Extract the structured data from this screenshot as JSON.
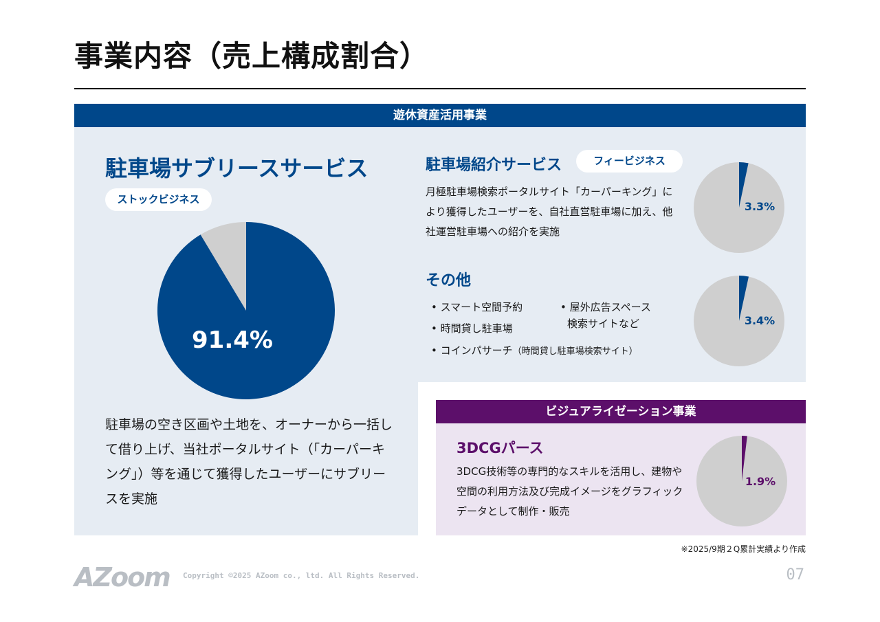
{
  "page": {
    "title": "事業内容（売上構成割合）",
    "footnote": "※2025/9期２Q累計実績より作成",
    "logo_text": "AZoom",
    "copyright": "Copyright ©2025 AZoom co., ltd. All Rights Reserved.",
    "page_number": "07"
  },
  "colors": {
    "primary_blue": "#00478a",
    "panel_blue": "#e6ecf3",
    "purple": "#5c0f6a",
    "panel_purple": "#ece4f1",
    "pie_grey": "#cfcfcf"
  },
  "idle_assets": {
    "header": "遊休資産活用事業",
    "sublease": {
      "title": "駐車場サブリースサービス",
      "badge": "ストックビジネス",
      "description": "駐車場の空き区画や土地を、オーナーから一括して借り上げ、当社ポータルサイト（「カーパーキング」）等を通じて獲得したユーザーにサブリースを実施"
    },
    "referral": {
      "title": "駐車場紹介サービス",
      "badge": "フィービジネス",
      "description": "月極駐車場検索ポータルサイト「カーパーキング」により獲得したユーザーを、自社直営駐車場に加え、他社運営駐車場への紹介を実施"
    },
    "other": {
      "title": "その他",
      "bullets": {
        "smart_space": "• スマート空間予約",
        "hourly_parking": "• 時間貸し駐車場",
        "outdoor_ads_line1": "• 屋外広告スペース",
        "outdoor_ads_line2": "検索サイトなど",
        "coin_pa_main": "• コインパサーチ",
        "coin_pa_note": "（時間貸し駐車場検索サイト）"
      }
    }
  },
  "visualization": {
    "header": "ビジュアライゼーション事業",
    "title": "3DCGパース",
    "description": "3DCG技術等の専門的なスキルを活用し、建物や空間の利用方法及び完成イメージをグラフィックデータとして制作・販売"
  },
  "chart_data": [
    {
      "type": "pie",
      "slice_label": "91.4%",
      "value": 91.4,
      "color": "#00478a",
      "remainder_color": "#cfcfcf"
    },
    {
      "type": "pie",
      "slice_label": "3.3%",
      "value": 3.3,
      "color": "#00478a",
      "remainder_color": "#cfcfcf"
    },
    {
      "type": "pie",
      "slice_label": "3.4%",
      "value": 3.4,
      "color": "#00478a",
      "remainder_color": "#cfcfcf"
    },
    {
      "type": "pie",
      "slice_label": "1.9%",
      "value": 1.9,
      "color": "#5c0f6a",
      "remainder_color": "#cfcfcf"
    }
  ]
}
